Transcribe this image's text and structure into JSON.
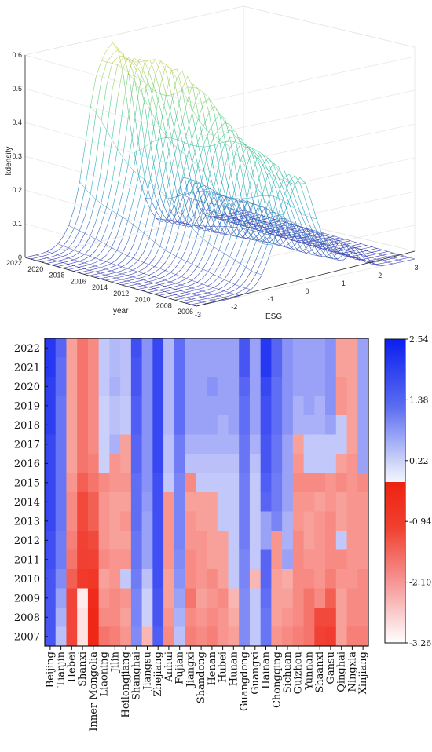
{
  "chart_data": [
    {
      "type": "surface",
      "xlabel": "ESG",
      "ylabel": "year",
      "zlabel": "kdensity",
      "xlim": [
        -3,
        3
      ],
      "ylim": [
        2006,
        2022
      ],
      "zlim": [
        0,
        0.6
      ],
      "x_ticks": [
        "-3",
        "-2",
        "-1",
        "0",
        "1",
        "2",
        "3"
      ],
      "y_ticks": [
        "2006",
        "2008",
        "2010",
        "2012",
        "2014",
        "2016",
        "2018",
        "2020",
        "2022"
      ],
      "z_ticks": [
        "0",
        "0.1",
        "0.2",
        "0.3",
        "0.4",
        "0.5",
        "0.6"
      ],
      "colormap": [
        "#3b3fb8",
        "#2aa8c9",
        "#4fd08a",
        "#e8d64a"
      ],
      "density_profile": [
        {
          "year": 2007,
          "peak_esg": -0.2,
          "peak_density": 0.3
        },
        {
          "year": 2010,
          "peak_esg": -0.3,
          "peak_density": 0.38
        },
        {
          "year": 2013,
          "peak_esg": -0.4,
          "peak_density": 0.45
        },
        {
          "year": 2016,
          "peak_esg": -0.5,
          "peak_density": 0.52
        },
        {
          "year": 2019,
          "peak_esg": -0.6,
          "peak_density": 0.56
        },
        {
          "year": 2022,
          "peak_esg": -0.7,
          "peak_density": 0.6
        }
      ]
    },
    {
      "type": "heatmap",
      "x_categories": [
        "Beijing",
        "Tianjin",
        "Hebei",
        "Shanxi",
        "Inner Mongolia",
        "Liaoning",
        "Jilin",
        "Heilongjiang",
        "Shanghai",
        "Jiangsu",
        "Zhejiang",
        "Anhui",
        "Fujian",
        "Jiangxi",
        "Shandong",
        "Henan",
        "Hubei",
        "Hunan",
        "Guangdong",
        "Guangxi",
        "Hainan",
        "Chongqing",
        "Sichuan",
        "Guizhou",
        "Yunnan",
        "Shaanxi",
        "Gansu",
        "Qinghai",
        "Ningxia",
        "Xinjiang"
      ],
      "y_categories": [
        "2022",
        "2021",
        "2020",
        "2019",
        "2018",
        "2017",
        "2016",
        "2015",
        "2014",
        "2013",
        "2012",
        "2011",
        "2010",
        "2009",
        "2008",
        "2007"
      ],
      "colorbar": {
        "min": -3.26,
        "max": 2.54,
        "ticks": [
          "2.54",
          "1.38",
          "0.22",
          "-0.94",
          "-2.10",
          "-3.26"
        ]
      },
      "values": [
        [
          2.2,
          1.6,
          -2.4,
          -2.0,
          -2.2,
          0.3,
          0.5,
          0.4,
          1.9,
          1.0,
          2.0,
          0.5,
          1.5,
          0.8,
          0.8,
          0.8,
          0.8,
          0.8,
          1.8,
          0.8,
          2.2,
          1.6,
          1.0,
          0.8,
          0.8,
          0.8,
          1.0,
          -2.4,
          -2.4,
          0.8
        ],
        [
          2.2,
          1.5,
          -2.4,
          -2.0,
          -2.2,
          0.3,
          0.5,
          0.4,
          1.8,
          1.0,
          2.0,
          0.5,
          1.5,
          0.8,
          0.8,
          0.8,
          0.8,
          0.8,
          1.8,
          0.8,
          2.2,
          1.6,
          1.0,
          0.8,
          0.8,
          0.8,
          1.0,
          -2.4,
          -2.4,
          0.8
        ],
        [
          2.1,
          1.5,
          -2.4,
          -2.0,
          -2.2,
          0.3,
          0.6,
          0.4,
          1.8,
          1.0,
          2.0,
          0.5,
          1.5,
          0.8,
          0.8,
          1.0,
          0.8,
          0.8,
          1.6,
          0.8,
          2.0,
          1.5,
          1.0,
          0.8,
          0.8,
          0.8,
          1.0,
          -2.3,
          -2.4,
          0.8
        ],
        [
          2.1,
          1.4,
          -2.4,
          -2.0,
          -2.2,
          0.2,
          0.4,
          0.3,
          1.7,
          1.0,
          2.0,
          0.5,
          1.5,
          0.8,
          0.8,
          0.8,
          0.8,
          0.8,
          1.5,
          0.8,
          1.9,
          1.5,
          1.0,
          0.6,
          0.8,
          0.6,
          1.0,
          -2.3,
          -2.4,
          0.8
        ],
        [
          2.1,
          1.4,
          -2.4,
          -2.0,
          -2.2,
          0.2,
          0.4,
          0.3,
          1.7,
          1.0,
          2.0,
          0.5,
          1.5,
          0.8,
          0.8,
          0.8,
          0.6,
          0.8,
          1.5,
          0.8,
          1.9,
          1.5,
          1.0,
          0.6,
          0.6,
          0.6,
          0.8,
          0.3,
          -2.4,
          0.8
        ],
        [
          2.0,
          1.4,
          -2.4,
          -2.0,
          -2.2,
          0.2,
          0.6,
          -2.4,
          1.6,
          1.0,
          2.0,
          0.4,
          1.3,
          0.6,
          0.6,
          0.6,
          0.6,
          0.6,
          1.4,
          0.6,
          1.8,
          1.4,
          0.8,
          -2.4,
          0.3,
          0.3,
          0.3,
          0.3,
          -2.4,
          0.8
        ],
        [
          2.0,
          1.4,
          -2.4,
          -2.0,
          -2.1,
          0.2,
          -2.3,
          -2.4,
          1.6,
          1.0,
          2.0,
          0.4,
          1.3,
          0.4,
          0.4,
          0.4,
          0.4,
          0.4,
          1.4,
          0.4,
          1.8,
          1.4,
          0.8,
          -2.3,
          0.3,
          0.3,
          0.3,
          -2.4,
          -2.3,
          0.8
        ],
        [
          2.0,
          1.4,
          -2.3,
          -1.8,
          -2.0,
          -2.2,
          -2.3,
          -2.3,
          1.5,
          1.0,
          1.9,
          0.3,
          1.2,
          -2.2,
          0.3,
          0.3,
          0.3,
          0.3,
          1.3,
          0.3,
          1.7,
          1.3,
          0.8,
          -2.2,
          -2.2,
          -2.2,
          -2.3,
          -2.2,
          -2.3,
          -2.2
        ],
        [
          2.0,
          1.4,
          -2.2,
          -1.6,
          -1.8,
          -2.3,
          -2.4,
          -2.4,
          1.5,
          0.9,
          1.9,
          -2.3,
          1.2,
          -2.4,
          -2.4,
          -2.4,
          0.3,
          0.3,
          1.3,
          0.3,
          1.6,
          1.3,
          0.8,
          -2.3,
          -2.3,
          -2.4,
          -2.3,
          -2.4,
          -2.3,
          -2.3
        ],
        [
          2.0,
          1.4,
          -2.2,
          -1.6,
          -1.8,
          -2.3,
          -2.4,
          -2.3,
          1.5,
          0.8,
          1.9,
          -2.3,
          1.2,
          -2.3,
          -2.4,
          -2.4,
          0.3,
          0.3,
          1.3,
          0.3,
          0.8,
          1.2,
          0.6,
          -2.3,
          -2.4,
          -2.3,
          -2.2,
          -2.4,
          -2.3,
          -2.3
        ],
        [
          1.9,
          1.3,
          -2.1,
          -1.4,
          -1.6,
          -2.3,
          -2.4,
          -2.4,
          1.4,
          0.8,
          1.9,
          -2.3,
          1.2,
          -2.3,
          -2.3,
          -2.4,
          -2.4,
          0.3,
          1.3,
          0.3,
          0.8,
          -2.3,
          0.6,
          -2.2,
          -2.4,
          -2.3,
          -2.2,
          0.3,
          -2.3,
          -2.3
        ],
        [
          1.9,
          1.3,
          -2.0,
          -1.3,
          -1.4,
          -2.2,
          -2.3,
          -2.3,
          1.4,
          0.8,
          1.9,
          -2.3,
          1.1,
          -2.2,
          -2.3,
          -2.4,
          -2.4,
          0.3,
          1.2,
          0.3,
          1.6,
          -2.3,
          0.8,
          -2.2,
          -2.3,
          -2.3,
          -2.2,
          -2.2,
          -2.3,
          -2.3
        ],
        [
          1.8,
          1.1,
          -1.8,
          -1.1,
          -1.0,
          -2.4,
          -2.3,
          0.3,
          1.3,
          0.4,
          1.9,
          -2.4,
          1.0,
          -2.2,
          -2.3,
          -2.2,
          -2.4,
          0.3,
          1.2,
          -2.6,
          1.6,
          -2.4,
          -2.5,
          -2.2,
          -2.2,
          -2.3,
          -2.1,
          -2.3,
          -2.3,
          -2.2
        ],
        [
          1.8,
          0.8,
          -1.5,
          -3.1,
          -0.6,
          -2.3,
          -2.2,
          -2.3,
          1.2,
          0.2,
          1.8,
          -2.4,
          0.8,
          -2.0,
          -2.4,
          -2.3,
          -2.2,
          -2.6,
          1.1,
          0.3,
          1.5,
          -2.4,
          -2.4,
          -2.2,
          -2.0,
          -2.2,
          -1.8,
          -2.4,
          -2.2,
          -2.2
        ],
        [
          1.8,
          0.6,
          -1.5,
          -3.0,
          -0.4,
          -2.2,
          -2.2,
          -2.4,
          1.2,
          0.2,
          1.8,
          -2.3,
          0.6,
          -2.2,
          -2.3,
          -2.2,
          -2.3,
          -2.5,
          1.1,
          0.3,
          1.4,
          -2.4,
          -2.3,
          -2.2,
          -2.0,
          -1.6,
          -1.6,
          -2.4,
          -2.2,
          -2.2
        ],
        [
          1.8,
          0.4,
          -1.5,
          -3.0,
          -0.4,
          -2.0,
          -2.1,
          -2.3,
          1.1,
          -2.6,
          1.7,
          -2.2,
          0.4,
          -2.1,
          -2.2,
          -2.1,
          -2.3,
          -2.4,
          1.1,
          0.3,
          1.4,
          -2.3,
          -2.2,
          -2.1,
          -2.0,
          -1.4,
          -1.2,
          -2.4,
          -2.1,
          -2.1
        ]
      ]
    }
  ]
}
